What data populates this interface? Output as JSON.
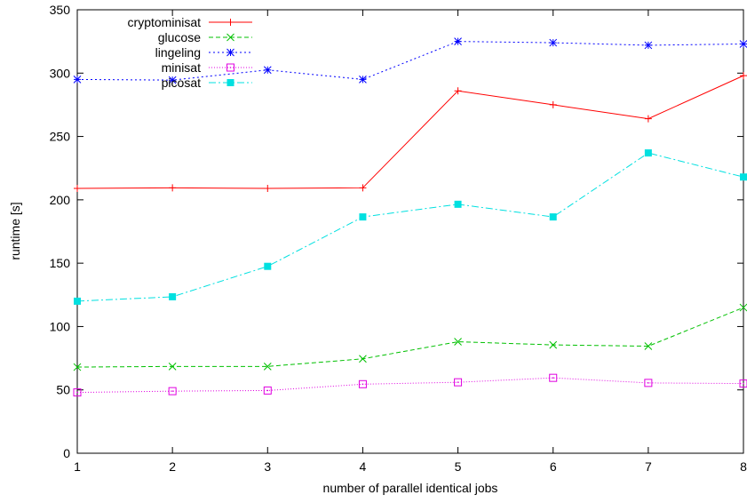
{
  "chart_data": {
    "type": "line",
    "xlabel": "number of parallel identical jobs",
    "ylabel": "runtime [s]",
    "xlim": [
      1,
      8
    ],
    "ylim": [
      0,
      350
    ],
    "x": [
      1,
      2,
      3,
      4,
      5,
      6,
      7,
      8
    ],
    "xticks": [
      1,
      2,
      3,
      4,
      5,
      6,
      7,
      8
    ],
    "yticks": [
      0,
      50,
      100,
      150,
      200,
      250,
      300,
      350
    ],
    "grid": false,
    "legend_position": "top-left",
    "series": [
      {
        "name": "cryptominisat",
        "color": "#ff0000",
        "marker": "plus",
        "dash": "",
        "values": [
          209,
          209.5,
          209,
          209.5,
          286,
          275,
          264,
          298
        ]
      },
      {
        "name": "glucose",
        "color": "#00c000",
        "marker": "cross",
        "dash": "5,3",
        "values": [
          68,
          68.5,
          68.5,
          74.5,
          88,
          85.5,
          84.5,
          115
        ]
      },
      {
        "name": "lingeling",
        "color": "#0000ff",
        "marker": "star",
        "dash": "2,3",
        "values": [
          295,
          294.5,
          302.5,
          295,
          325,
          324,
          322,
          323
        ]
      },
      {
        "name": "minisat",
        "color": "#e000e0",
        "marker": "square",
        "dash": "1,2",
        "values": [
          48,
          49,
          49.5,
          54.5,
          56,
          59.5,
          55.5,
          55
        ]
      },
      {
        "name": "picosat",
        "color": "#00e0e0",
        "marker": "filled-square",
        "dash": "8,3,2,3",
        "values": [
          120,
          123.5,
          147.5,
          186.5,
          196.5,
          186.5,
          237,
          218
        ]
      }
    ]
  }
}
